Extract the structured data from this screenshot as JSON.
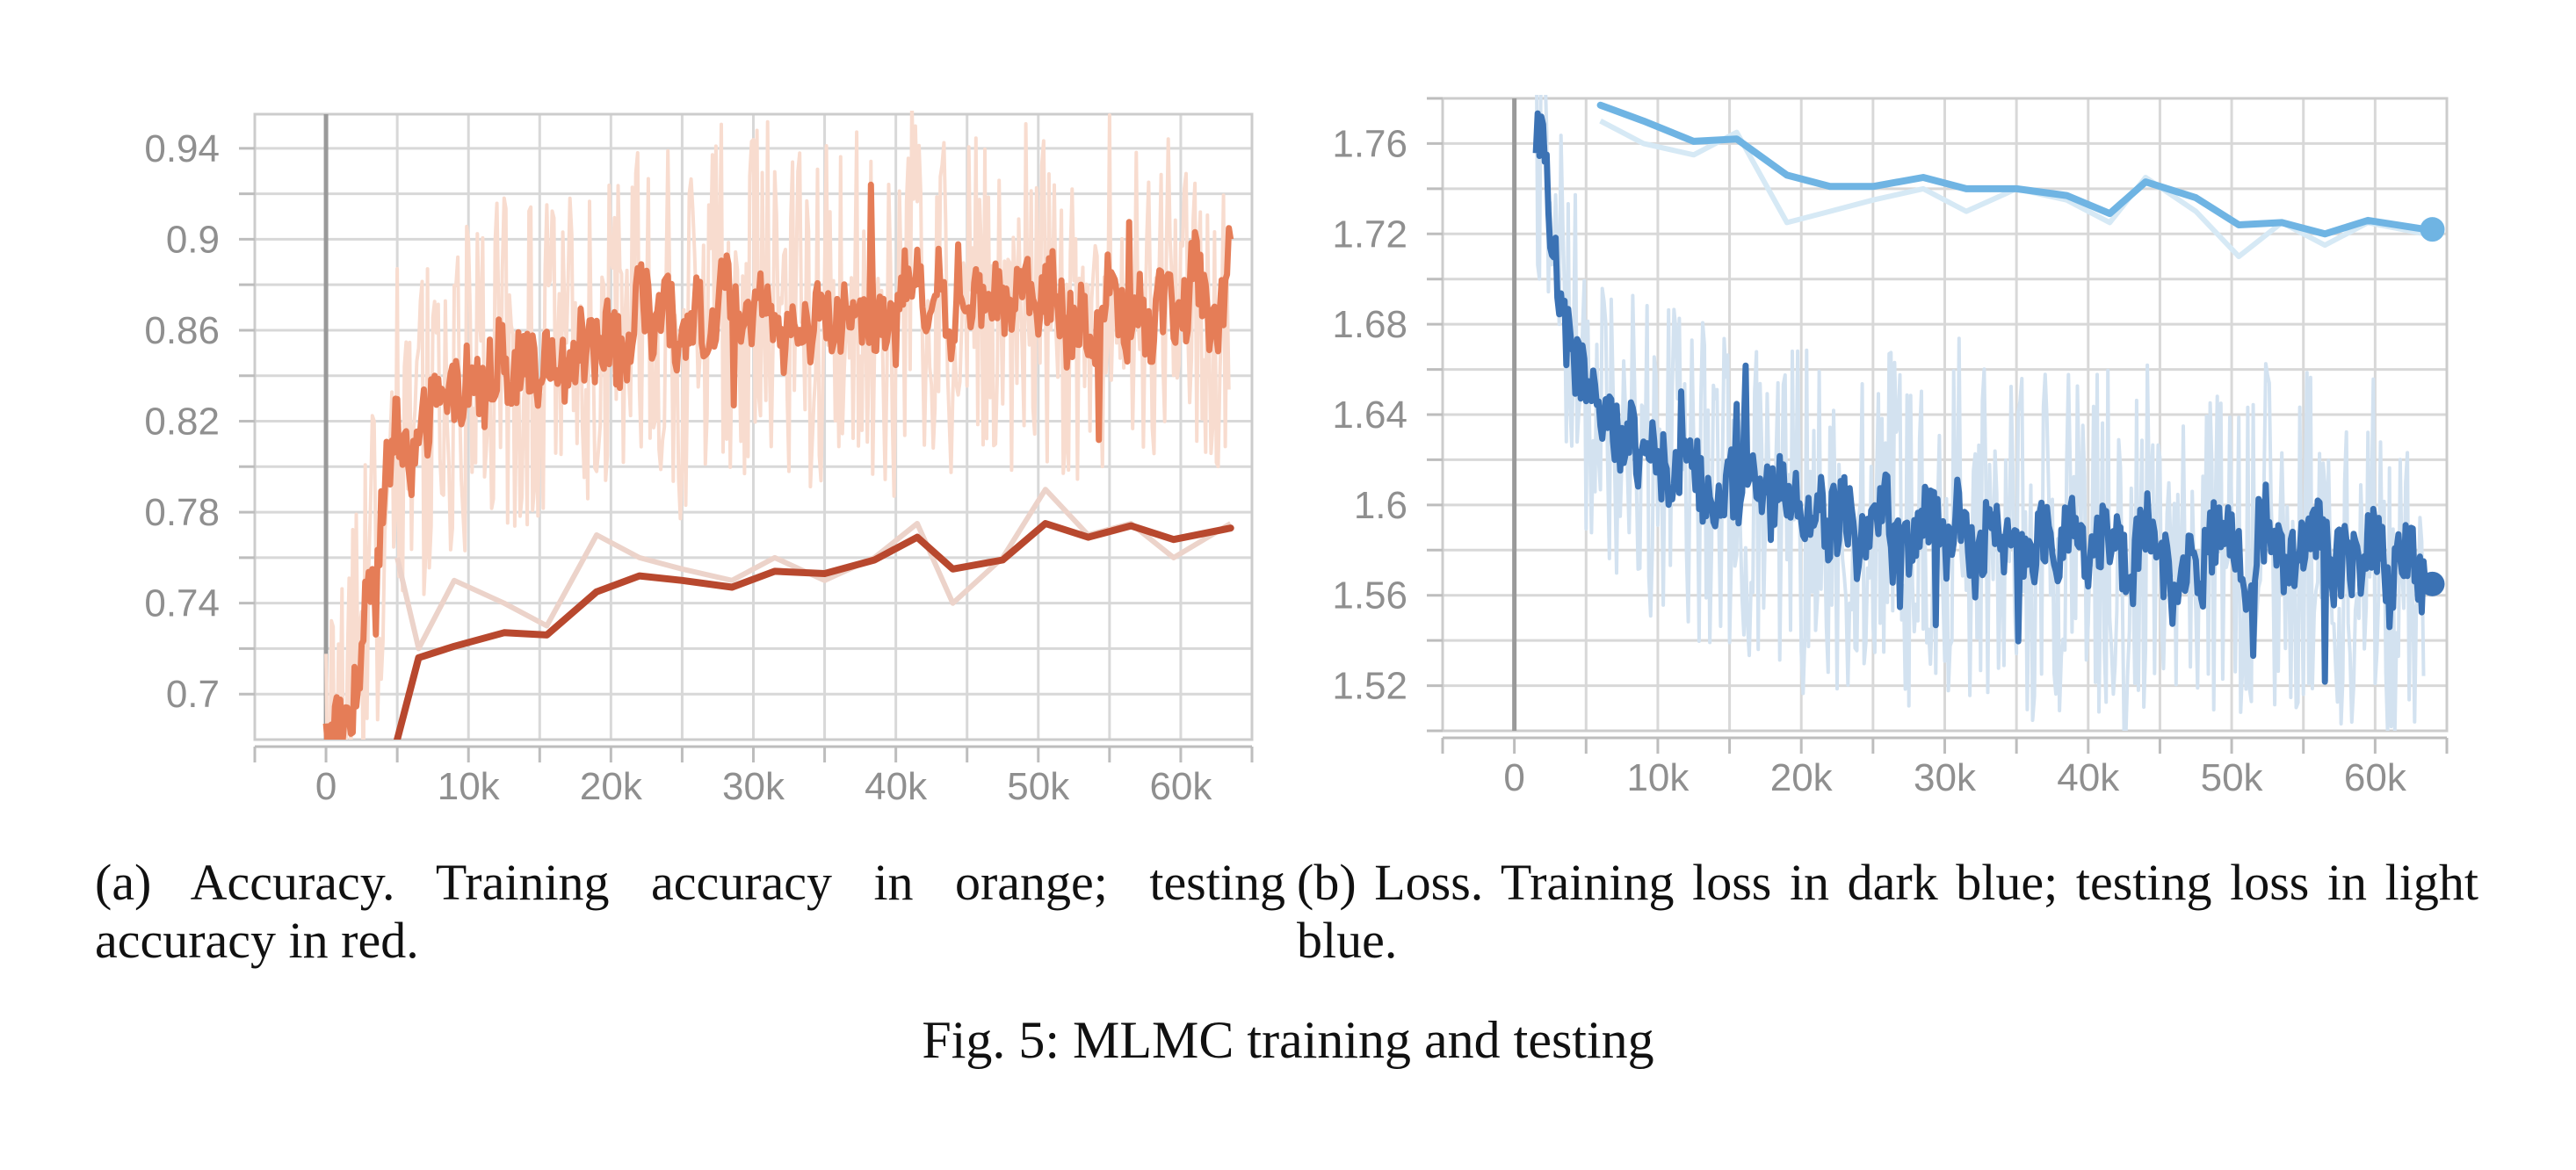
{
  "figure": {
    "caption": "Fig. 5: MLMC training and testing",
    "subcaption_a": "(a) Accuracy. Training accuracy in orange; testing accuracy in red.",
    "subcaption_b": "(b) Loss. Training loss in dark blue; testing loss in light blue."
  },
  "chart_data": [
    {
      "id": "accuracy",
      "type": "line",
      "title": "",
      "xlabel": "",
      "ylabel": "",
      "xlim": [
        -5000,
        65000
      ],
      "ylim": [
        0.68,
        0.955
      ],
      "xticks": [
        0,
        10000,
        20000,
        30000,
        40000,
        50000,
        60000
      ],
      "xtick_labels": [
        "0",
        "10k",
        "20k",
        "30k",
        "40k",
        "50k",
        "60k"
      ],
      "yticks": [
        0.7,
        0.74,
        0.78,
        0.82,
        0.86,
        0.9,
        0.94
      ],
      "ytick_labels": [
        "0.7",
        "0.74",
        "0.78",
        "0.82",
        "0.86",
        "0.9",
        "0.94"
      ],
      "grid": true,
      "legend": "none",
      "series": [
        {
          "color": "#e57d57",
          "raw_color": "#f8dccf",
          "smoothed": [
            [
              0,
              0.68
            ],
            [
              500,
              0.69
            ],
            [
              1000,
              0.685
            ],
            [
              1500,
              0.69
            ],
            [
              2000,
              0.7
            ],
            [
              2500,
              0.72
            ],
            [
              3000,
              0.76
            ],
            [
              3500,
              0.74
            ],
            [
              4000,
              0.79
            ],
            [
              4500,
              0.8
            ],
            [
              5000,
              0.82
            ],
            [
              5500,
              0.81
            ],
            [
              6000,
              0.8
            ],
            [
              7000,
              0.82
            ],
            [
              8000,
              0.83
            ],
            [
              9000,
              0.83
            ],
            [
              10000,
              0.84
            ],
            [
              11000,
              0.83
            ],
            [
              12000,
              0.85
            ],
            [
              13000,
              0.84
            ],
            [
              14000,
              0.85
            ],
            [
              15000,
              0.84
            ],
            [
              16000,
              0.85
            ],
            [
              17000,
              0.84
            ],
            [
              18000,
              0.86
            ],
            [
              19000,
              0.85
            ],
            [
              20000,
              0.86
            ],
            [
              21000,
              0.84
            ],
            [
              22000,
              0.88
            ],
            [
              23000,
              0.86
            ],
            [
              24000,
              0.87
            ],
            [
              25000,
              0.85
            ],
            [
              26000,
              0.87
            ],
            [
              27000,
              0.86
            ],
            [
              28000,
              0.88
            ],
            [
              29000,
              0.86
            ],
            [
              30000,
              0.87
            ],
            [
              31000,
              0.88
            ],
            [
              32000,
              0.85
            ],
            [
              33000,
              0.87
            ],
            [
              34000,
              0.86
            ],
            [
              35000,
              0.87
            ],
            [
              36000,
              0.86
            ],
            [
              37000,
              0.88
            ],
            [
              38000,
              0.86
            ],
            [
              39000,
              0.87
            ],
            [
              40000,
              0.86
            ],
            [
              41000,
              0.89
            ],
            [
              42000,
              0.87
            ],
            [
              43000,
              0.88
            ],
            [
              44000,
              0.86
            ],
            [
              45000,
              0.88
            ],
            [
              46000,
              0.87
            ],
            [
              47000,
              0.88
            ],
            [
              48000,
              0.87
            ],
            [
              49000,
              0.89
            ],
            [
              50000,
              0.87
            ],
            [
              51000,
              0.88
            ],
            [
              52000,
              0.86
            ],
            [
              53000,
              0.87
            ],
            [
              54000,
              0.86
            ],
            [
              55000,
              0.88
            ],
            [
              56000,
              0.86
            ],
            [
              57000,
              0.87
            ],
            [
              58000,
              0.86
            ],
            [
              59000,
              0.88
            ],
            [
              60000,
              0.86
            ],
            [
              61000,
              0.89
            ],
            [
              62000,
              0.86
            ],
            [
              63000,
              0.87
            ],
            [
              63500,
              0.9
            ]
          ],
          "range": [
            0.68,
            0.955
          ]
        },
        {
          "color": "#b8482e",
          "raw_color": "#ecd3ca",
          "smoothed": [
            [
              5000,
              0.68
            ],
            [
              6500,
              0.716
            ],
            [
              9000,
              0.721
            ],
            [
              12500,
              0.727
            ],
            [
              15500,
              0.726
            ],
            [
              19000,
              0.745
            ],
            [
              22000,
              0.752
            ],
            [
              25000,
              0.75
            ],
            [
              28500,
              0.747
            ],
            [
              31500,
              0.754
            ],
            [
              35000,
              0.753
            ],
            [
              38500,
              0.759
            ],
            [
              41500,
              0.769
            ],
            [
              44000,
              0.755
            ],
            [
              47500,
              0.759
            ],
            [
              50500,
              0.775
            ],
            [
              53500,
              0.769
            ],
            [
              56500,
              0.774
            ],
            [
              59500,
              0.768
            ],
            [
              63500,
              0.773
            ]
          ],
          "raw": [
            [
              5000,
              0.76
            ],
            [
              6500,
              0.72
            ],
            [
              9000,
              0.75
            ],
            [
              12500,
              0.74
            ],
            [
              15500,
              0.73
            ],
            [
              19000,
              0.77
            ],
            [
              22000,
              0.76
            ],
            [
              25000,
              0.755
            ],
            [
              28500,
              0.75
            ],
            [
              31500,
              0.76
            ],
            [
              35000,
              0.75
            ],
            [
              38500,
              0.76
            ],
            [
              41500,
              0.775
            ],
            [
              44000,
              0.74
            ],
            [
              47500,
              0.76
            ],
            [
              50500,
              0.79
            ],
            [
              53500,
              0.77
            ],
            [
              56500,
              0.775
            ],
            [
              59500,
              0.76
            ],
            [
              63500,
              0.775
            ]
          ]
        }
      ]
    },
    {
      "id": "loss",
      "type": "line",
      "title": "",
      "xlabel": "",
      "ylabel": "",
      "xlim": [
        -5000,
        65000
      ],
      "ylim": [
        1.5,
        1.78
      ],
      "xticks": [
        0,
        10000,
        20000,
        30000,
        40000,
        50000,
        60000
      ],
      "xtick_labels": [
        "0",
        "10k",
        "20k",
        "30k",
        "40k",
        "50k",
        "60k"
      ],
      "yticks": [
        1.52,
        1.56,
        1.6,
        1.64,
        1.68,
        1.72,
        1.76
      ],
      "ytick_labels": [
        "1.52",
        "1.56",
        "1.6",
        "1.64",
        "1.68",
        "1.72",
        "1.76"
      ],
      "grid": true,
      "legend": "none",
      "series": [
        {
          "color": "#3b72b4",
          "raw_color": "#d3e2f0",
          "smoothed": [
            [
              1500,
              1.78
            ],
            [
              2000,
              1.76
            ],
            [
              2500,
              1.72
            ],
            [
              3000,
              1.7
            ],
            [
              3500,
              1.68
            ],
            [
              4000,
              1.67
            ],
            [
              5000,
              1.65
            ],
            [
              6000,
              1.64
            ],
            [
              7000,
              1.63
            ],
            [
              8000,
              1.63
            ],
            [
              9000,
              1.62
            ],
            [
              10000,
              1.62
            ],
            [
              11000,
              1.61
            ],
            [
              12000,
              1.62
            ],
            [
              13000,
              1.61
            ],
            [
              14000,
              1.6
            ],
            [
              15000,
              1.61
            ],
            [
              16000,
              1.6
            ],
            [
              17000,
              1.61
            ],
            [
              18000,
              1.6
            ],
            [
              19000,
              1.61
            ],
            [
              20000,
              1.59
            ],
            [
              21000,
              1.6
            ],
            [
              22000,
              1.59
            ],
            [
              23000,
              1.6
            ],
            [
              24000,
              1.58
            ],
            [
              25000,
              1.59
            ],
            [
              26000,
              1.6
            ],
            [
              27000,
              1.58
            ],
            [
              28000,
              1.59
            ],
            [
              29000,
              1.6
            ],
            [
              30000,
              1.58
            ],
            [
              31000,
              1.6
            ],
            [
              32000,
              1.57
            ],
            [
              33000,
              1.59
            ],
            [
              34000,
              1.58
            ],
            [
              35000,
              1.59
            ],
            [
              36000,
              1.57
            ],
            [
              37000,
              1.59
            ],
            [
              38000,
              1.58
            ],
            [
              39000,
              1.59
            ],
            [
              40000,
              1.57
            ],
            [
              41000,
              1.59
            ],
            [
              42000,
              1.58
            ],
            [
              43000,
              1.57
            ],
            [
              44000,
              1.59
            ],
            [
              45000,
              1.58
            ],
            [
              46000,
              1.56
            ],
            [
              47000,
              1.58
            ],
            [
              48000,
              1.57
            ],
            [
              49000,
              1.59
            ],
            [
              50000,
              1.58
            ],
            [
              51000,
              1.57
            ],
            [
              52000,
              1.59
            ],
            [
              53000,
              1.58
            ],
            [
              54000,
              1.57
            ],
            [
              55000,
              1.58
            ],
            [
              56000,
              1.59
            ],
            [
              57000,
              1.57
            ],
            [
              58000,
              1.58
            ],
            [
              59000,
              1.57
            ],
            [
              60000,
              1.59
            ],
            [
              61000,
              1.56
            ],
            [
              62000,
              1.58
            ],
            [
              63000,
              1.57
            ],
            [
              63500,
              1.565
            ]
          ],
          "range": [
            1.5,
            1.78
          ]
        },
        {
          "color": "#6fb4e3",
          "raw_color": "#d6e9f5",
          "smoothed": [
            [
              6000,
              1.777
            ],
            [
              9000,
              1.77
            ],
            [
              12500,
              1.761
            ],
            [
              15500,
              1.762
            ],
            [
              19000,
              1.746
            ],
            [
              22000,
              1.741
            ],
            [
              25000,
              1.741
            ],
            [
              28500,
              1.745
            ],
            [
              31500,
              1.74
            ],
            [
              35000,
              1.74
            ],
            [
              38500,
              1.737
            ],
            [
              41500,
              1.729
            ],
            [
              44000,
              1.743
            ],
            [
              47500,
              1.736
            ],
            [
              50500,
              1.724
            ],
            [
              53500,
              1.725
            ],
            [
              56500,
              1.72
            ],
            [
              59500,
              1.726
            ],
            [
              63500,
              1.722
            ]
          ],
          "raw": [
            [
              6000,
              1.77
            ],
            [
              9000,
              1.76
            ],
            [
              12500,
              1.755
            ],
            [
              15500,
              1.765
            ],
            [
              19000,
              1.725
            ],
            [
              22000,
              1.73
            ],
            [
              25000,
              1.735
            ],
            [
              28500,
              1.74
            ],
            [
              31500,
              1.73
            ],
            [
              35000,
              1.74
            ],
            [
              38500,
              1.735
            ],
            [
              41500,
              1.725
            ],
            [
              44000,
              1.745
            ],
            [
              47500,
              1.73
            ],
            [
              50500,
              1.71
            ],
            [
              53500,
              1.725
            ],
            [
              56500,
              1.715
            ],
            [
              59500,
              1.725
            ],
            [
              63500,
              1.72
            ]
          ]
        }
      ]
    }
  ]
}
